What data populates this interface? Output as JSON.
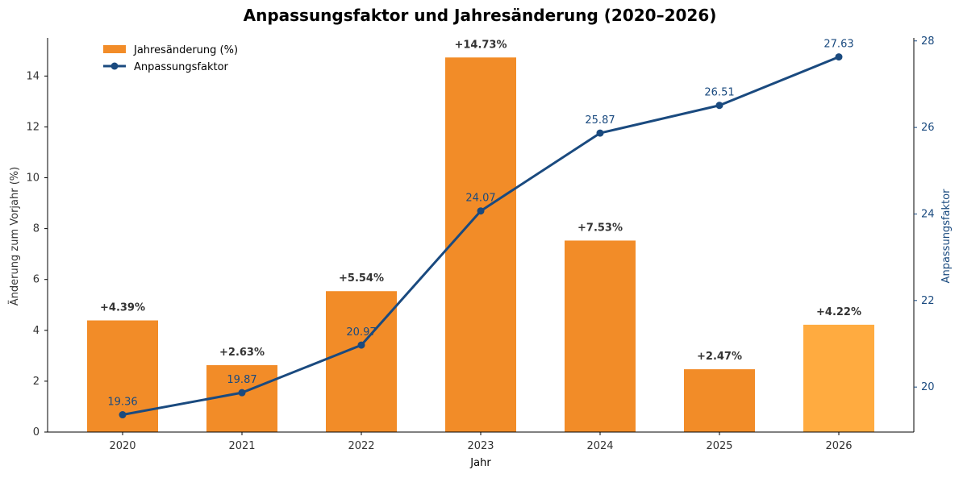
{
  "chart_data": {
    "type": "bar+line",
    "title": "Anpassungsfaktor und Jahresänderung (2020–2026)",
    "xlabel": "Jahr",
    "ylabel": "Änderung zum Vorjahr (%)",
    "ylabel_right": "Anpassungsfaktor",
    "categories": [
      "2020",
      "2021",
      "2022",
      "2023",
      "2024",
      "2025",
      "2026"
    ],
    "ylim": [
      0,
      15.5
    ],
    "ylim_right": [
      18.96,
      28.07
    ],
    "yticks": [
      0,
      2,
      4,
      6,
      8,
      10,
      12,
      14
    ],
    "yticks_right": [
      20,
      22,
      24,
      26,
      28
    ],
    "grid": false,
    "legend_position": "top-left",
    "series": [
      {
        "name": "Jahresänderung (%)",
        "type": "bar",
        "axis": "left",
        "values": [
          4.39,
          2.63,
          5.54,
          14.73,
          7.53,
          2.47,
          4.22
        ],
        "labels": [
          "+4.39%",
          "+2.63%",
          "+5.54%",
          "+14.73%",
          "+7.53%",
          "+2.47%",
          "+4.22%"
        ],
        "color": "#f28c28",
        "highlight_color": "#ffab40",
        "highlight_index": 6
      },
      {
        "name": "Anpassungsfaktor",
        "type": "line",
        "axis": "right",
        "values": [
          19.36,
          19.87,
          20.97,
          24.07,
          25.87,
          26.51,
          27.63
        ],
        "labels": [
          "19.36",
          "19.87",
          "20.97",
          "24.07",
          "25.87",
          "26.51",
          "27.63"
        ],
        "color": "#1a4a7f"
      }
    ]
  }
}
